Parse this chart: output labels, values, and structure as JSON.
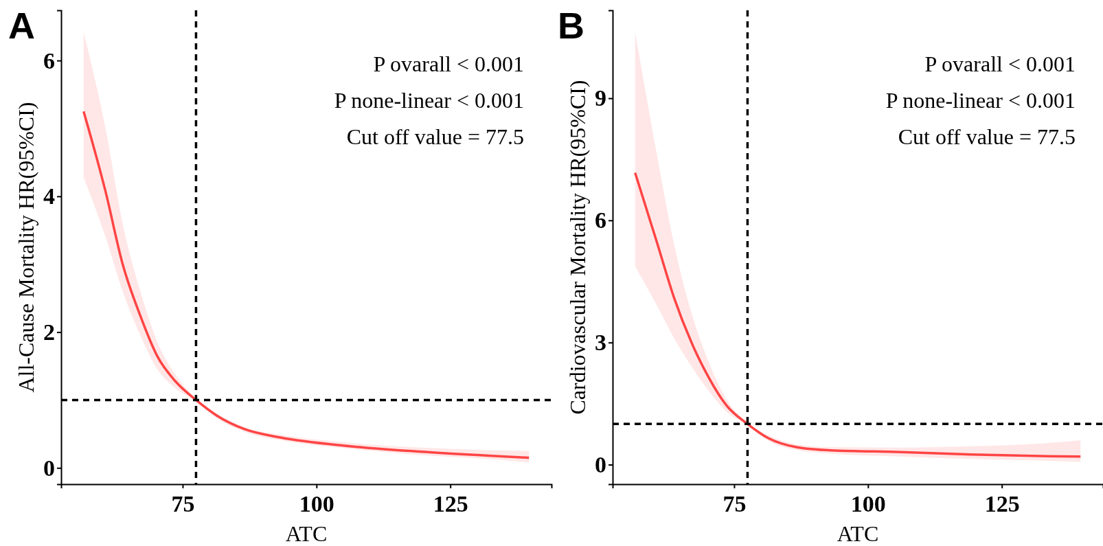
{
  "chart_data": [
    {
      "type": "line",
      "title": "A",
      "xlabel": "ATC",
      "ylabel": "All-Cause Mortality HR(95%CI)",
      "annotations": [
        "P ovarall < 0.001",
        "P none-linear < 0.001",
        "Cut off value = 77.5"
      ],
      "xlim": [
        52.3,
        143.9
      ],
      "xticks": [
        75,
        100,
        125
      ],
      "ylim": [
        -0.24,
        6.74
      ],
      "yticks": [
        0,
        2,
        4,
        6
      ],
      "grid": false,
      "marker": "none",
      "line_style": "solid",
      "ref_lines": [
        {
          "axis": "x",
          "value": 77.5,
          "line_style": "dashed",
          "color": "#000000"
        },
        {
          "axis": "y",
          "value": 1,
          "line_style": "dashed",
          "color": "#000000"
        }
      ],
      "series": [
        {
          "color": "#ff4444",
          "x": [
            56.5,
            60.6,
            63.8,
            67.1,
            70.3,
            73.6,
            77.5,
            81.4,
            86.6,
            93.1,
            106.2,
            119.2,
            132.2,
            139.7
          ],
          "values": [
            5.25,
            4.07,
            3.0,
            2.24,
            1.64,
            1.28,
            1.0,
            0.77,
            0.57,
            0.45,
            0.32,
            0.24,
            0.18,
            0.15
          ],
          "upper": [
            6.42,
            5.0,
            3.6,
            2.6,
            1.85,
            1.38,
            1.02,
            0.8,
            0.6,
            0.49,
            0.37,
            0.3,
            0.26,
            0.25
          ],
          "lower": [
            4.28,
            3.4,
            2.6,
            1.95,
            1.45,
            1.18,
            0.98,
            0.73,
            0.53,
            0.41,
            0.28,
            0.19,
            0.13,
            0.08
          ]
        }
      ]
    },
    {
      "type": "line",
      "title": "B",
      "xlabel": "ATC",
      "ylabel": "Cardiovascular Mortality HR(95%CI)",
      "annotations": [
        "P ovarall < 0.001",
        "P none-linear < 0.001",
        "Cut off value = 77.5"
      ],
      "xlim": [
        52.3,
        143.9
      ],
      "xticks": [
        75,
        100,
        125
      ],
      "ylim": [
        -0.48,
        11.16
      ],
      "yticks": [
        0,
        3,
        6,
        9
      ],
      "grid": false,
      "marker": "none",
      "line_style": "solid",
      "ref_lines": [
        {
          "axis": "x",
          "value": 77.5,
          "line_style": "dashed",
          "color": "#000000"
        },
        {
          "axis": "y",
          "value": 1,
          "line_style": "dashed",
          "color": "#000000"
        }
      ],
      "series": [
        {
          "color": "#ff4444",
          "x": [
            56.5,
            60.6,
            63.8,
            67.1,
            70.3,
            73.6,
            77.5,
            81.4,
            86.6,
            93.1,
            106.2,
            119.2,
            132.2,
            139.7
          ],
          "values": [
            7.17,
            5.45,
            4.09,
            2.98,
            2.13,
            1.45,
            1.0,
            0.65,
            0.43,
            0.35,
            0.31,
            0.25,
            0.21,
            0.2
          ],
          "upper": [
            10.63,
            7.6,
            5.4,
            3.7,
            2.5,
            1.6,
            1.03,
            0.72,
            0.5,
            0.43,
            0.42,
            0.45,
            0.52,
            0.6
          ],
          "lower": [
            4.87,
            3.9,
            3.1,
            2.4,
            1.8,
            1.3,
            0.97,
            0.58,
            0.36,
            0.27,
            0.2,
            0.14,
            0.1,
            0.07
          ]
        }
      ]
    }
  ]
}
